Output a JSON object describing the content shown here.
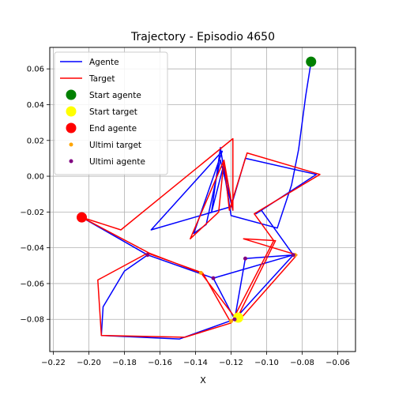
{
  "chart_data": {
    "type": "line",
    "title": "Trajectory - Episodio 4650",
    "xlabel": "X",
    "ylabel": "",
    "xlim": [
      -0.222,
      -0.05
    ],
    "ylim": [
      -0.098,
      0.072
    ],
    "xticks": [
      -0.22,
      -0.2,
      -0.18,
      -0.16,
      -0.14,
      -0.12,
      -0.1,
      -0.08,
      -0.06
    ],
    "xtick_labels": [
      "−0.22",
      "−0.20",
      "−0.18",
      "−0.16",
      "−0.14",
      "−0.12",
      "−0.10",
      "−0.08",
      "−0.06"
    ],
    "yticks": [
      -0.08,
      -0.06,
      -0.04,
      -0.02,
      0.0,
      0.02,
      0.04,
      0.06
    ],
    "ytick_labels": [
      "−0.08",
      "−0.06",
      "−0.04",
      "−0.02",
      "0.00",
      "0.02",
      "0.04",
      "0.06"
    ],
    "grid": true,
    "legend_position": "top-left",
    "series": [
      {
        "name": "Agente",
        "color": "#0000ff",
        "kind": "line",
        "points": [
          [
            -0.075,
            0.064
          ],
          [
            -0.078,
            0.045
          ],
          [
            -0.082,
            0.015
          ],
          [
            -0.086,
            -0.005
          ],
          [
            -0.094,
            -0.029
          ],
          [
            -0.12,
            -0.022
          ],
          [
            -0.126,
            0.016
          ],
          [
            -0.131,
            -0.02
          ],
          [
            -0.124,
            0.007
          ],
          [
            -0.119,
            -0.019
          ],
          [
            -0.126,
            0.009
          ],
          [
            -0.134,
            -0.027
          ],
          [
            -0.141,
            -0.032
          ],
          [
            -0.125,
            0.014
          ],
          [
            -0.165,
            -0.03
          ],
          [
            -0.12,
            -0.017
          ],
          [
            -0.112,
            0.01
          ],
          [
            -0.072,
            0.001
          ],
          [
            -0.106,
            -0.021
          ],
          [
            -0.103,
            -0.019
          ],
          [
            -0.085,
            -0.044
          ],
          [
            -0.112,
            -0.046
          ],
          [
            -0.118,
            -0.08
          ],
          [
            -0.13,
            -0.057
          ],
          [
            -0.167,
            -0.044
          ],
          [
            -0.18,
            -0.053
          ],
          [
            -0.192,
            -0.073
          ],
          [
            -0.193,
            -0.089
          ],
          [
            -0.149,
            -0.091
          ],
          [
            -0.118,
            -0.08
          ],
          [
            -0.085,
            -0.044
          ],
          [
            -0.13,
            -0.057
          ],
          [
            -0.167,
            -0.044
          ],
          [
            -0.204,
            -0.023
          ]
        ]
      },
      {
        "name": "Target",
        "color": "#ff0000",
        "kind": "line",
        "points": [
          [
            -0.115,
            -0.08
          ],
          [
            -0.083,
            -0.044
          ],
          [
            -0.113,
            -0.035
          ],
          [
            -0.095,
            -0.036
          ],
          [
            -0.117,
            -0.08
          ],
          [
            -0.137,
            -0.054
          ],
          [
            -0.166,
            -0.043
          ],
          [
            -0.204,
            -0.023
          ],
          [
            -0.182,
            -0.03
          ],
          [
            -0.119,
            0.021
          ],
          [
            -0.119,
            -0.019
          ],
          [
            -0.124,
            0.009
          ],
          [
            -0.143,
            -0.035
          ],
          [
            -0.127,
            -0.02
          ],
          [
            -0.124,
            0.009
          ],
          [
            -0.121,
            -0.019
          ],
          [
            -0.111,
            0.013
          ],
          [
            -0.07,
            0.001
          ],
          [
            -0.107,
            -0.021
          ],
          [
            -0.096,
            -0.036
          ],
          [
            -0.12,
            -0.082
          ],
          [
            -0.136,
            -0.054
          ],
          [
            -0.167,
            -0.043
          ],
          [
            -0.195,
            -0.058
          ],
          [
            -0.193,
            -0.089
          ],
          [
            -0.146,
            -0.09
          ],
          [
            -0.12,
            -0.082
          ]
        ]
      }
    ],
    "markers": [
      {
        "name": "Start agente",
        "color": "#008000",
        "size": "large",
        "points": [
          [
            -0.075,
            0.064
          ]
        ]
      },
      {
        "name": "Start target",
        "color": "#ffff00",
        "size": "large",
        "points": [
          [
            -0.116,
            -0.079
          ]
        ]
      },
      {
        "name": "End agente",
        "color": "#ff0000",
        "size": "large",
        "points": [
          [
            -0.204,
            -0.023
          ]
        ]
      },
      {
        "name": "Ultimi target",
        "color": "#ffa500",
        "size": "small",
        "points": [
          [
            -0.203,
            -0.023
          ],
          [
            -0.137,
            -0.054
          ],
          [
            -0.12,
            -0.081
          ],
          [
            -0.084,
            -0.044
          ]
        ]
      },
      {
        "name": "Ultimi agente",
        "color": "#800080",
        "size": "small",
        "points": [
          [
            -0.204,
            -0.023
          ],
          [
            -0.167,
            -0.044
          ],
          [
            -0.13,
            -0.057
          ],
          [
            -0.118,
            -0.08
          ],
          [
            -0.112,
            -0.046
          ],
          [
            -0.085,
            -0.044
          ]
        ]
      }
    ]
  }
}
